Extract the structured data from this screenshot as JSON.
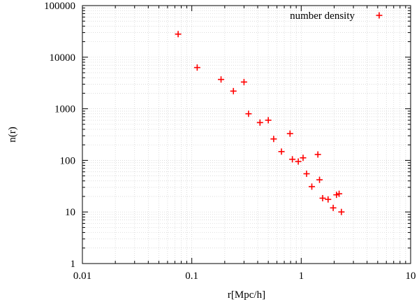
{
  "chart_data": {
    "type": "scatter",
    "title": "",
    "xlabel": "r[Mpc/h]",
    "ylabel": "n(r)",
    "xscale": "log",
    "yscale": "log",
    "xlim": [
      0.01,
      10
    ],
    "ylim": [
      1,
      100000
    ],
    "grid": true,
    "legend": {
      "position": "top-right",
      "entries": [
        "number density"
      ]
    },
    "x_ticks": [
      "0.01",
      "0.1",
      "1",
      "10"
    ],
    "y_ticks": [
      "1",
      "10",
      "100",
      "1000",
      "10000",
      "100000"
    ],
    "series": [
      {
        "name": "number density",
        "color": "#ff0000",
        "marker": "plus",
        "points": [
          [
            0.075,
            28000
          ],
          [
            0.112,
            6300
          ],
          [
            0.185,
            3700
          ],
          [
            0.24,
            2200
          ],
          [
            0.3,
            3300
          ],
          [
            0.33,
            800
          ],
          [
            0.42,
            540
          ],
          [
            0.5,
            600
          ],
          [
            0.56,
            260
          ],
          [
            0.66,
            148
          ],
          [
            0.79,
            330
          ],
          [
            0.83,
            105
          ],
          [
            0.94,
            95
          ],
          [
            1.04,
            112
          ],
          [
            1.12,
            55
          ],
          [
            1.25,
            31
          ],
          [
            1.42,
            130
          ],
          [
            1.47,
            42
          ],
          [
            1.57,
            18.5
          ],
          [
            1.76,
            17.5
          ],
          [
            1.96,
            12
          ],
          [
            2.1,
            21.5
          ],
          [
            2.22,
            22.5
          ],
          [
            2.33,
            10
          ]
        ]
      }
    ]
  }
}
